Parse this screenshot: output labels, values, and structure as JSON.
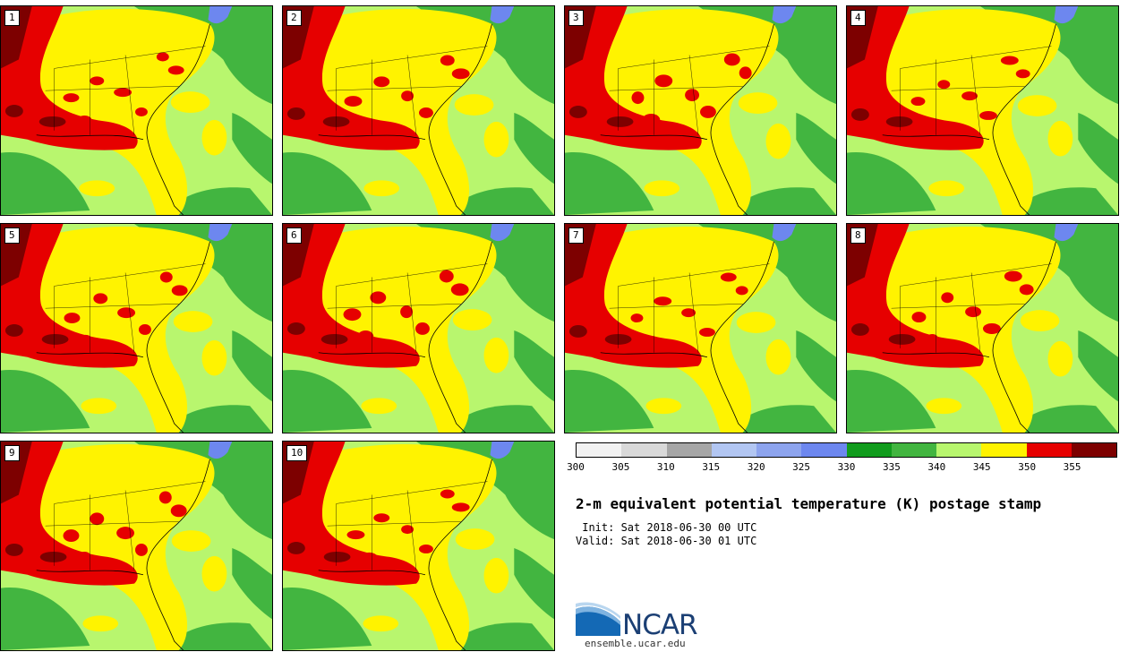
{
  "panels": [
    {
      "label": "1"
    },
    {
      "label": "2"
    },
    {
      "label": "3"
    },
    {
      "label": "4"
    },
    {
      "label": "5"
    },
    {
      "label": "6"
    },
    {
      "label": "7"
    },
    {
      "label": "8"
    },
    {
      "label": "9"
    },
    {
      "label": "10"
    }
  ],
  "colorbar": {
    "units": "K",
    "ticks": [
      "300",
      "305",
      "310",
      "315",
      "320",
      "325",
      "330",
      "335",
      "340",
      "345",
      "350",
      "355"
    ],
    "colors": [
      "#f2f2f2",
      "#d9d9d9",
      "#a6a6a6",
      "#b2c6f2",
      "#8da4ee",
      "#6d87ef",
      "#119c1d",
      "#42b540",
      "#b8f66e",
      "#fff300",
      "#e60000",
      "#7d0000"
    ]
  },
  "title": "2-m equivalent potential temperature (K) postage stamp",
  "init": " Init: Sat 2018-06-30 00 UTC",
  "valid": "Valid: Sat 2018-06-30 01 UTC",
  "logo": {
    "name": "NCAR",
    "url": "ensemble.ucar.edu"
  }
}
